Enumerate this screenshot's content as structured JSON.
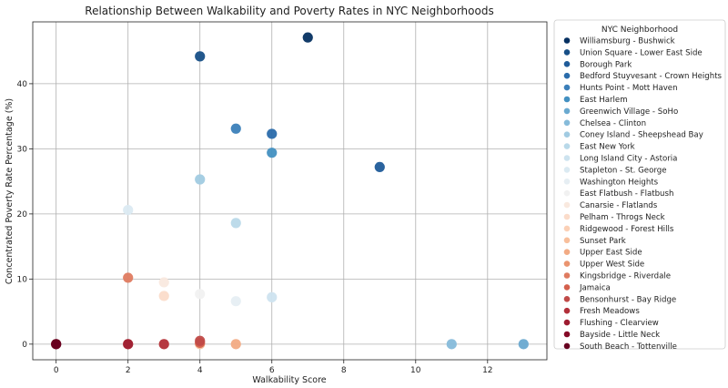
{
  "chart_data": {
    "type": "scatter",
    "title": "Relationship Between Walkability and Poverty Rates in NYC Neighborhoods",
    "xlabel": "Walkability Score",
    "ylabel": "Concentrated Poverty Rate Percentage (%)",
    "xlim": [
      -0.65,
      13.65
    ],
    "ylim": [
      -2.4,
      49.5
    ],
    "xticks": [
      0,
      2,
      4,
      6,
      8,
      10,
      12
    ],
    "yticks": [
      0,
      10,
      20,
      30,
      40
    ],
    "grid": true,
    "legend": {
      "title": "NYC Neighborhood",
      "position": "outside-right"
    },
    "series": [
      {
        "name": "Williamsburg - Bushwick",
        "color": "#053061",
        "x": 7,
        "y": 47.1
      },
      {
        "name": "Union Square - Lower East Side",
        "color": "#174f87",
        "x": 4,
        "y": 44.2
      },
      {
        "name": "Borough Park",
        "color": "#1f5b99",
        "x": 9,
        "y": 27.2
      },
      {
        "name": "Bedford Stuyvesant - Crown Heights",
        "color": "#2a6cab",
        "x": 6,
        "y": 32.3
      },
      {
        "name": "Hunts Point - Mott Haven",
        "color": "#3b7fb9",
        "x": 5,
        "y": 33.1
      },
      {
        "name": "East Harlem",
        "color": "#4390c1",
        "x": 6,
        "y": 29.4
      },
      {
        "name": "Greenwich Village - SoHo",
        "color": "#6aa9d0",
        "x": 13,
        "y": 0
      },
      {
        "name": "Chelsea - Clinton",
        "color": "#86bbda",
        "x": 11,
        "y": 0
      },
      {
        "name": "Coney Island - Sheepshead Bay",
        "color": "#a1cbe2",
        "x": 4,
        "y": 25.3
      },
      {
        "name": "East New York",
        "color": "#b9d9e9",
        "x": 5,
        "y": 18.6
      },
      {
        "name": "Long Island City - Astoria",
        "color": "#cde3ef",
        "x": 6,
        "y": 7.2
      },
      {
        "name": "Stapleton - St. George",
        "color": "#dbeaf2",
        "x": 2,
        "y": 20.6
      },
      {
        "name": "Washington Heights",
        "color": "#e6eef3",
        "x": 5,
        "y": 6.6
      },
      {
        "name": "East Flatbush - Flatbush",
        "color": "#f1f1f1",
        "x": 4,
        "y": 7.7
      },
      {
        "name": "Canarsie - Flatlands",
        "color": "#f9e9df",
        "x": 3,
        "y": 9.5
      },
      {
        "name": "Pelham - Throgs Neck",
        "color": "#fbdcca",
        "x": 3,
        "y": 7.4
      },
      {
        "name": "Ridgewood - Forest Hills",
        "color": "#fbd0b6",
        "x": 3,
        "y": 0
      },
      {
        "name": "Sunset Park",
        "color": "#f8bf9c",
        "x": 4,
        "y": 0
      },
      {
        "name": "Upper East Side",
        "color": "#f2ab84",
        "x": 5,
        "y": 0
      },
      {
        "name": "Upper West Side",
        "color": "#ea946f",
        "x": 2,
        "y": 0
      },
      {
        "name": "Kingsbridge - Riverdale",
        "color": "#df7b60",
        "x": 2,
        "y": 10.2
      },
      {
        "name": "Jamaica",
        "color": "#d4604d",
        "x": 4,
        "y": 0.2
      },
      {
        "name": "Bensonhurst - Bay Ridge",
        "color": "#c04a48",
        "x": 4,
        "y": 0.5
      },
      {
        "name": "Fresh Meadows",
        "color": "#b2303a",
        "x": 3,
        "y": 0
      },
      {
        "name": "Flushing - Clearview",
        "color": "#9d1b30",
        "x": 2,
        "y": 0
      },
      {
        "name": "Bayside - Little Neck",
        "color": "#850a27",
        "x": 0,
        "y": 0
      },
      {
        "name": "South Beach - Tottenville",
        "color": "#67001f",
        "x": 0,
        "y": 0
      }
    ]
  }
}
